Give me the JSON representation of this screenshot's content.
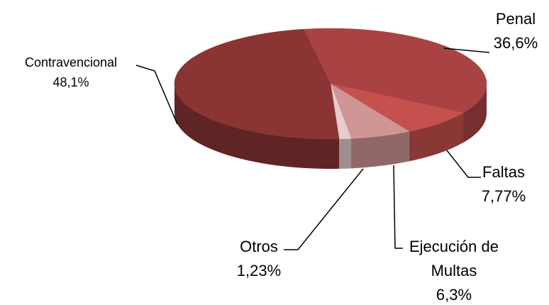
{
  "chart_data": {
    "type": "pie",
    "categories": [
      "Penal",
      "Faltas",
      "Ejecución de Multas",
      "Otros",
      "Contravencional"
    ],
    "values": [
      36.6,
      7.77,
      6.3,
      1.23,
      48.1
    ],
    "value_labels": [
      "36,6%",
      "7,77%",
      "6,3%",
      "1,23%",
      "48,1%"
    ],
    "colors": [
      "#a94343",
      "#c4514e",
      "#d09595",
      "#e6cccc",
      "#8a3434"
    ]
  }
}
